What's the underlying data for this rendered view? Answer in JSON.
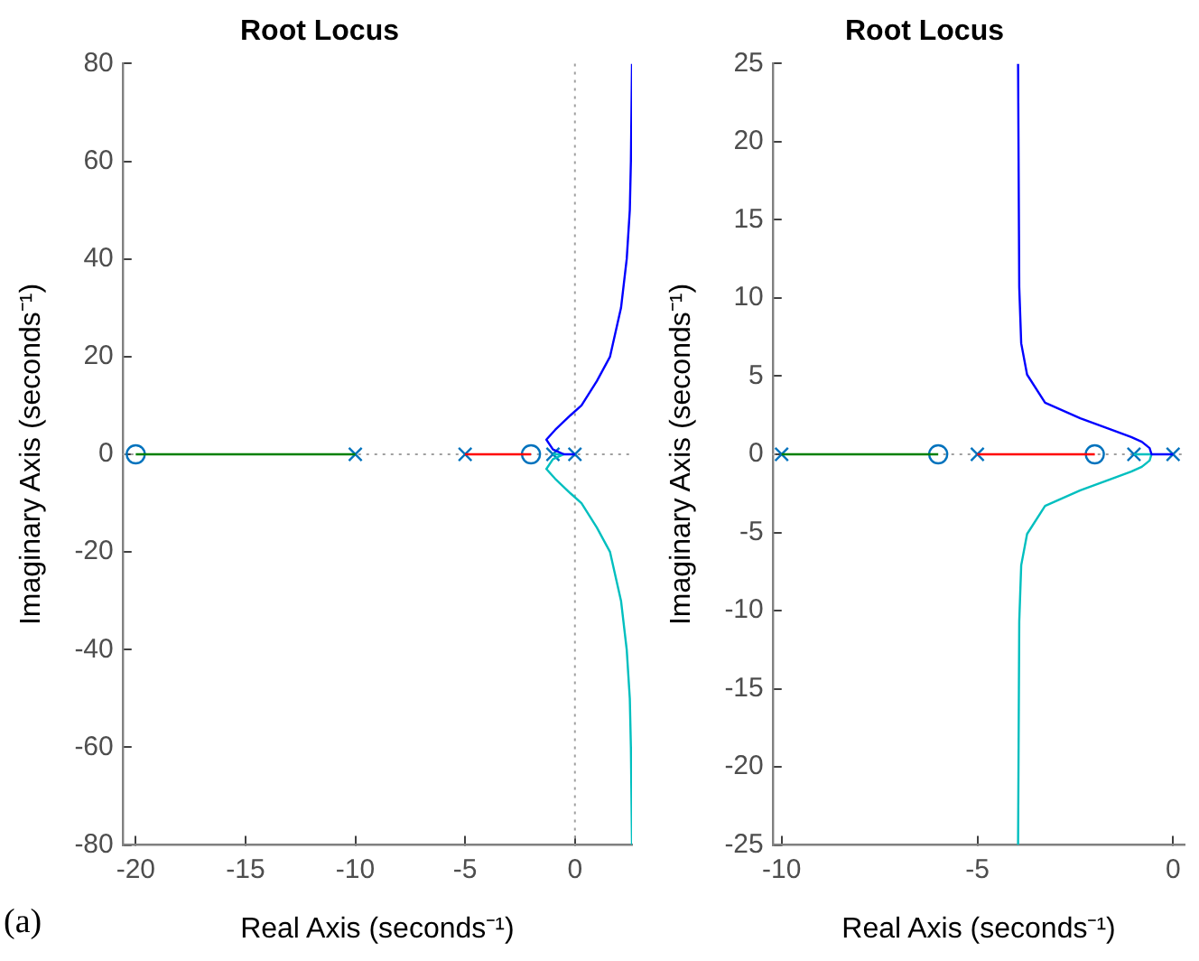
{
  "chart_data": [
    {
      "type": "line",
      "title": "Root Locus",
      "xlabel": "Real Axis (seconds⁻¹)",
      "ylabel": "Imaginary Axis (seconds⁻¹)",
      "xlim": [
        -20.6,
        2.6
      ],
      "xticks": [
        -20,
        -15,
        -10,
        -5,
        0
      ],
      "ylim": [
        -80,
        80
      ],
      "yticks": [
        -80,
        -60,
        -40,
        -20,
        0,
        20,
        40,
        60,
        80
      ],
      "grid": false,
      "legend": false,
      "ref_lines": [
        {
          "axis": "y",
          "value": 0,
          "color": "#a0a0a0",
          "line_style": "dotted"
        },
        {
          "axis": "x",
          "value": 0,
          "color": "#a0a0a0",
          "line_style": "dotted"
        }
      ],
      "series": [
        {
          "type": "line",
          "color": "#008000",
          "x": [
            -10,
            -20
          ],
          "values": [
            0,
            0
          ]
        },
        {
          "type": "line",
          "color": "#ff0000",
          "x": [
            -5,
            -2
          ],
          "values": [
            0,
            0
          ]
        },
        {
          "type": "line",
          "color": "#0000ff",
          "x": [
            0,
            -0.5,
            -1.0,
            -1.3,
            -0.9,
            -0.2,
            0.3,
            1.0,
            1.6,
            2.1,
            2.36,
            2.5,
            2.55,
            2.6
          ],
          "values": [
            0,
            0,
            1,
            3,
            5,
            8,
            10,
            15,
            20,
            30,
            40,
            50,
            60,
            80
          ]
        },
        {
          "type": "line",
          "color": "#00bfbf",
          "x": [
            -1,
            -0.5,
            -1.0,
            -1.3,
            -0.9,
            -0.2,
            0.3,
            1.0,
            1.6,
            2.1,
            2.36,
            2.5,
            2.55,
            2.6
          ],
          "values": [
            0,
            0,
            -1,
            -3,
            -5,
            -8,
            -10,
            -15,
            -20,
            -30,
            -40,
            -50,
            -60,
            -80
          ]
        },
        {
          "type": "scatter",
          "marker": "cross",
          "color": "#0072bd",
          "x": [
            -10,
            -5,
            -1,
            0
          ],
          "values": [
            0,
            0,
            0,
            0
          ]
        },
        {
          "type": "scatter",
          "marker": "circle",
          "color": "#0072bd",
          "x": [
            -20,
            -2
          ],
          "values": [
            0,
            0
          ]
        }
      ],
      "annotations": [
        "(a)"
      ]
    },
    {
      "type": "line",
      "title": "Root Locus",
      "xlabel": "Real Axis (seconds⁻¹)",
      "ylabel": "Imaginary Axis (seconds⁻¹)",
      "xlim": [
        -10.23,
        0.3
      ],
      "xticks": [
        -10,
        -5,
        0
      ],
      "ylim": [
        -25,
        25
      ],
      "yticks": [
        -25,
        -20,
        -15,
        -10,
        -5,
        0,
        5,
        10,
        15,
        20,
        25
      ],
      "grid": false,
      "legend": false,
      "ref_lines": [
        {
          "axis": "y",
          "value": 0,
          "color": "#a0a0a0",
          "line_style": "dotted"
        }
      ],
      "series": [
        {
          "type": "line",
          "color": "#008000",
          "x": [
            -10,
            -6
          ],
          "values": [
            0,
            0
          ]
        },
        {
          "type": "line",
          "color": "#ff0000",
          "x": [
            -5,
            -2
          ],
          "values": [
            0,
            0
          ]
        },
        {
          "type": "line",
          "color": "#0000ff",
          "x": [
            0,
            -0.55,
            -0.6,
            -0.8,
            -1.07,
            -1.6,
            -2.37,
            -3.27,
            -3.73,
            -3.88,
            -3.93,
            -3.96
          ],
          "values": [
            0,
            0,
            0.4,
            0.8,
            1.1,
            1.6,
            2.3,
            3.3,
            5.1,
            7.1,
            10.7,
            25
          ]
        },
        {
          "type": "line",
          "color": "#00bfbf",
          "x": [
            -1,
            -0.55,
            -0.6,
            -0.8,
            -1.07,
            -1.6,
            -2.37,
            -3.27,
            -3.73,
            -3.88,
            -3.93,
            -3.96
          ],
          "values": [
            0,
            0,
            -0.4,
            -0.8,
            -1.1,
            -1.6,
            -2.3,
            -3.3,
            -5.1,
            -7.1,
            -10.7,
            -25
          ]
        },
        {
          "type": "scatter",
          "marker": "cross",
          "color": "#0072bd",
          "x": [
            -10,
            -5,
            -1,
            0
          ],
          "values": [
            0,
            0,
            0,
            0
          ]
        },
        {
          "type": "scatter",
          "marker": "circle",
          "color": "#0072bd",
          "x": [
            -6,
            -2
          ],
          "values": [
            0,
            0
          ]
        }
      ]
    }
  ]
}
